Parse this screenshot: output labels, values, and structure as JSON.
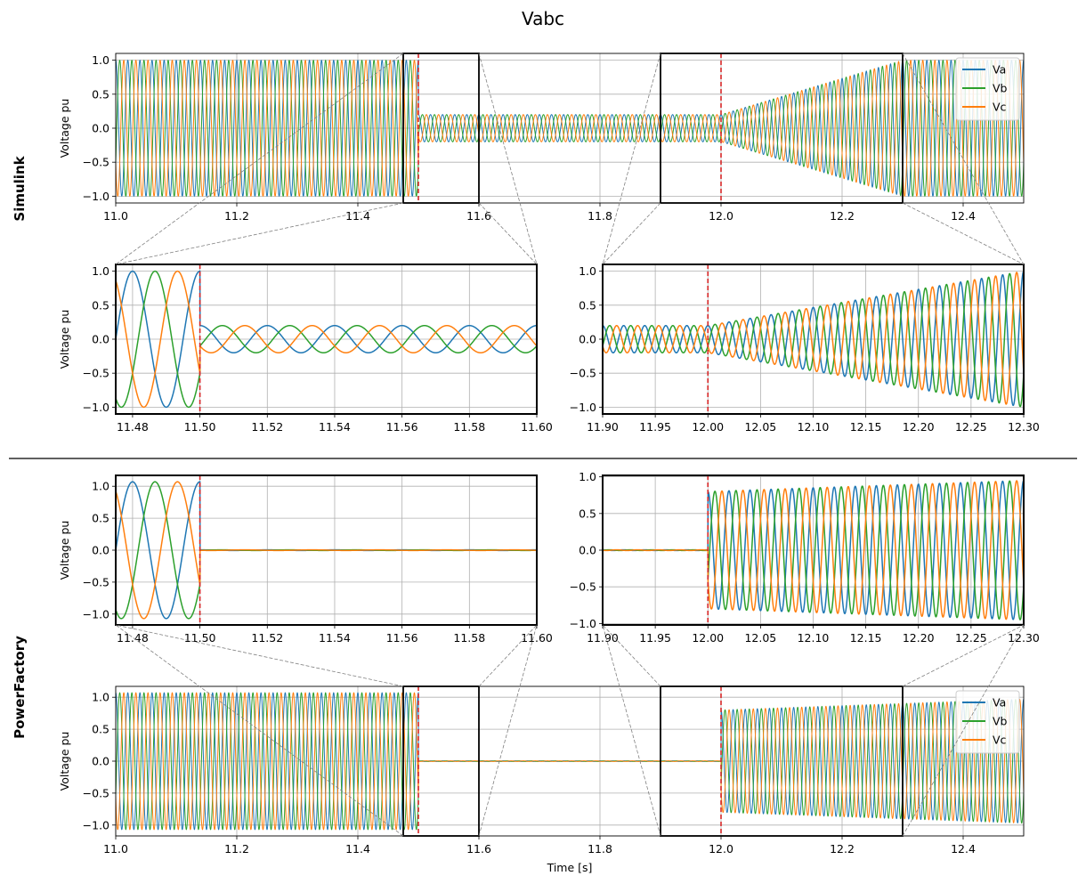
{
  "figure": {
    "title": "Vabc",
    "group_labels": {
      "top": "Simulink",
      "bottom": "PowerFactory"
    },
    "ylabel": "Voltage pu",
    "xlabel_bottom": "Time [s]",
    "legend": [
      "Va",
      "Vb",
      "Vc"
    ],
    "colors": {
      "Va": "#1f77b4",
      "Vb": "#2ca02c",
      "Vc": "#ff7f0e",
      "event_line": "#d62728",
      "zoom_box": "#000000",
      "connector": "#808080",
      "grid": "#b0b0b0"
    },
    "frequency_hz": 50,
    "events_s": [
      11.5,
      12.0
    ]
  },
  "chart_data": [
    {
      "id": "simulink-full",
      "type": "line",
      "title": "",
      "xlabel": "",
      "ylabel": "Voltage pu",
      "xlim": [
        11.0,
        12.5
      ],
      "ylim": [
        -1.1,
        1.1
      ],
      "xticks": [
        11.0,
        11.2,
        11.4,
        11.6,
        11.8,
        12.0,
        12.2,
        12.4
      ],
      "xtick_labels": [
        "11.0",
        "11.2",
        "11.4",
        "11.6",
        "11.8",
        "12.0",
        "12.2",
        "12.4"
      ],
      "yticks": [
        -1.0,
        -0.5,
        0.0,
        0.5,
        1.0
      ],
      "ytick_labels": [
        "−1.0",
        "−0.5",
        "0.0",
        "0.5",
        "1.0"
      ],
      "grid": true,
      "legend": "top-right",
      "series": [
        {
          "name": "Va",
          "phase_deg": 90
        },
        {
          "name": "Vb",
          "phase_deg": -30
        },
        {
          "name": "Vc",
          "phase_deg": -150
        }
      ],
      "amplitude_profile": [
        [
          11.0,
          1.0
        ],
        [
          11.5,
          1.0
        ],
        [
          11.5,
          0.2
        ],
        [
          12.0,
          0.2
        ],
        [
          12.3,
          1.0
        ],
        [
          12.5,
          1.0
        ]
      ],
      "vlines": [
        11.5,
        12.0
      ],
      "zoom_boxes": [
        {
          "x": [
            11.475,
            11.6
          ],
          "target": "simulink-zoom-fault"
        },
        {
          "x": [
            11.9,
            12.3
          ],
          "target": "simulink-zoom-recovery"
        }
      ]
    },
    {
      "id": "simulink-zoom-fault",
      "type": "line",
      "xlabel": "",
      "ylabel": "Voltage pu",
      "xlim": [
        11.475,
        11.6
      ],
      "ylim": [
        -1.1,
        1.1
      ],
      "xticks": [
        11.48,
        11.5,
        11.52,
        11.54,
        11.56,
        11.58,
        11.6
      ],
      "xtick_labels": [
        "11.48",
        "11.50",
        "11.52",
        "11.54",
        "11.56",
        "11.58",
        "11.60"
      ],
      "yticks": [
        -1.0,
        -0.5,
        0.0,
        0.5,
        1.0
      ],
      "ytick_labels": [
        "−1.0",
        "−0.5",
        "0.0",
        "0.5",
        "1.0"
      ],
      "grid": true,
      "series": [
        {
          "name": "Va",
          "phase_deg": 90
        },
        {
          "name": "Vb",
          "phase_deg": -30
        },
        {
          "name": "Vc",
          "phase_deg": -150
        }
      ],
      "amplitude_profile": [
        [
          11.475,
          1.0
        ],
        [
          11.5,
          1.0
        ],
        [
          11.5,
          0.2
        ],
        [
          11.6,
          0.2
        ]
      ],
      "vlines": [
        11.5
      ]
    },
    {
      "id": "simulink-zoom-recovery",
      "type": "line",
      "xlabel": "",
      "ylabel": "",
      "xlim": [
        11.9,
        12.3
      ],
      "ylim": [
        -1.1,
        1.1
      ],
      "xticks": [
        11.9,
        11.95,
        12.0,
        12.05,
        12.1,
        12.15,
        12.2,
        12.25,
        12.3
      ],
      "xtick_labels": [
        "11.90",
        "11.95",
        "12.00",
        "12.05",
        "12.10",
        "12.15",
        "12.20",
        "12.25",
        "12.30"
      ],
      "yticks": [
        -1.0,
        -0.5,
        0.0,
        0.5,
        1.0
      ],
      "ytick_labels": [
        "−1.0",
        "−0.5",
        "0.0",
        "0.5",
        "1.0"
      ],
      "grid": true,
      "series": [
        {
          "name": "Va",
          "phase_deg": 90
        },
        {
          "name": "Vb",
          "phase_deg": -30
        },
        {
          "name": "Vc",
          "phase_deg": -150
        }
      ],
      "amplitude_profile": [
        [
          11.9,
          0.2
        ],
        [
          12.0,
          0.2
        ],
        [
          12.3,
          1.0
        ]
      ],
      "vlines": [
        12.0
      ]
    },
    {
      "id": "powerfactory-zoom-fault",
      "type": "line",
      "xlabel": "",
      "ylabel": "Voltage pu",
      "xlim": [
        11.475,
        11.6
      ],
      "ylim": [
        -1.17,
        1.17
      ],
      "xticks": [
        11.48,
        11.5,
        11.52,
        11.54,
        11.56,
        11.58,
        11.6
      ],
      "xtick_labels": [
        "11.48",
        "11.50",
        "11.52",
        "11.54",
        "11.56",
        "11.58",
        "11.60"
      ],
      "yticks": [
        -1.0,
        -0.5,
        0.0,
        0.5,
        1.0
      ],
      "ytick_labels": [
        "−1.0",
        "−0.5",
        "0.0",
        "0.5",
        "1.0"
      ],
      "grid": true,
      "series": [
        {
          "name": "Va",
          "phase_deg": 90
        },
        {
          "name": "Vb",
          "phase_deg": -30
        },
        {
          "name": "Vc",
          "phase_deg": -150
        }
      ],
      "amplitude_profile": [
        [
          11.475,
          1.07
        ],
        [
          11.5,
          1.07
        ],
        [
          11.5,
          0.005
        ],
        [
          11.6,
          0.005
        ]
      ],
      "vlines": [
        11.5
      ]
    },
    {
      "id": "powerfactory-zoom-recovery",
      "type": "line",
      "xlabel": "",
      "ylabel": "",
      "xlim": [
        11.9,
        12.3
      ],
      "ylim": [
        -1.02,
        1.02
      ],
      "xticks": [
        11.9,
        11.95,
        12.0,
        12.05,
        12.1,
        12.15,
        12.2,
        12.25,
        12.3
      ],
      "xtick_labels": [
        "11.90",
        "11.95",
        "12.00",
        "12.05",
        "12.10",
        "12.15",
        "12.20",
        "12.25",
        "12.30"
      ],
      "yticks": [
        -1.0,
        -0.5,
        0.0,
        0.5,
        1.0
      ],
      "ytick_labels": [
        "−1.0",
        "−0.5",
        "0.0",
        "0.5",
        "1.0"
      ],
      "grid": true,
      "series": [
        {
          "name": "Va",
          "phase_deg": 90
        },
        {
          "name": "Vb",
          "phase_deg": -30
        },
        {
          "name": "Vc",
          "phase_deg": -150
        }
      ],
      "amplitude_profile": [
        [
          11.9,
          0.005
        ],
        [
          12.0,
          0.005
        ],
        [
          12.0,
          0.8
        ],
        [
          12.3,
          0.95
        ]
      ],
      "vlines": [
        12.0
      ]
    },
    {
      "id": "powerfactory-full",
      "type": "line",
      "xlabel": "Time [s]",
      "ylabel": "Voltage pu",
      "xlim": [
        11.0,
        12.5
      ],
      "ylim": [
        -1.17,
        1.17
      ],
      "xticks": [
        11.0,
        11.2,
        11.4,
        11.6,
        11.8,
        12.0,
        12.2,
        12.4
      ],
      "xtick_labels": [
        "11.0",
        "11.2",
        "11.4",
        "11.6",
        "11.8",
        "12.0",
        "12.2",
        "12.4"
      ],
      "yticks": [
        -1.0,
        -0.5,
        0.0,
        0.5,
        1.0
      ],
      "ytick_labels": [
        "−1.0",
        "−0.5",
        "0.0",
        "0.5",
        "1.0"
      ],
      "grid": true,
      "legend": "top-right",
      "series": [
        {
          "name": "Va",
          "phase_deg": 90
        },
        {
          "name": "Vb",
          "phase_deg": -30
        },
        {
          "name": "Vc",
          "phase_deg": -150
        }
      ],
      "amplitude_profile": [
        [
          11.0,
          1.07
        ],
        [
          11.5,
          1.07
        ],
        [
          11.5,
          0.005
        ],
        [
          12.0,
          0.005
        ],
        [
          12.0,
          0.8
        ],
        [
          12.5,
          0.97
        ]
      ],
      "vlines": [
        11.5,
        12.0
      ],
      "zoom_boxes": [
        {
          "x": [
            11.475,
            11.6
          ],
          "target": "powerfactory-zoom-fault"
        },
        {
          "x": [
            11.9,
            12.3
          ],
          "target": "powerfactory-zoom-recovery"
        }
      ]
    }
  ]
}
